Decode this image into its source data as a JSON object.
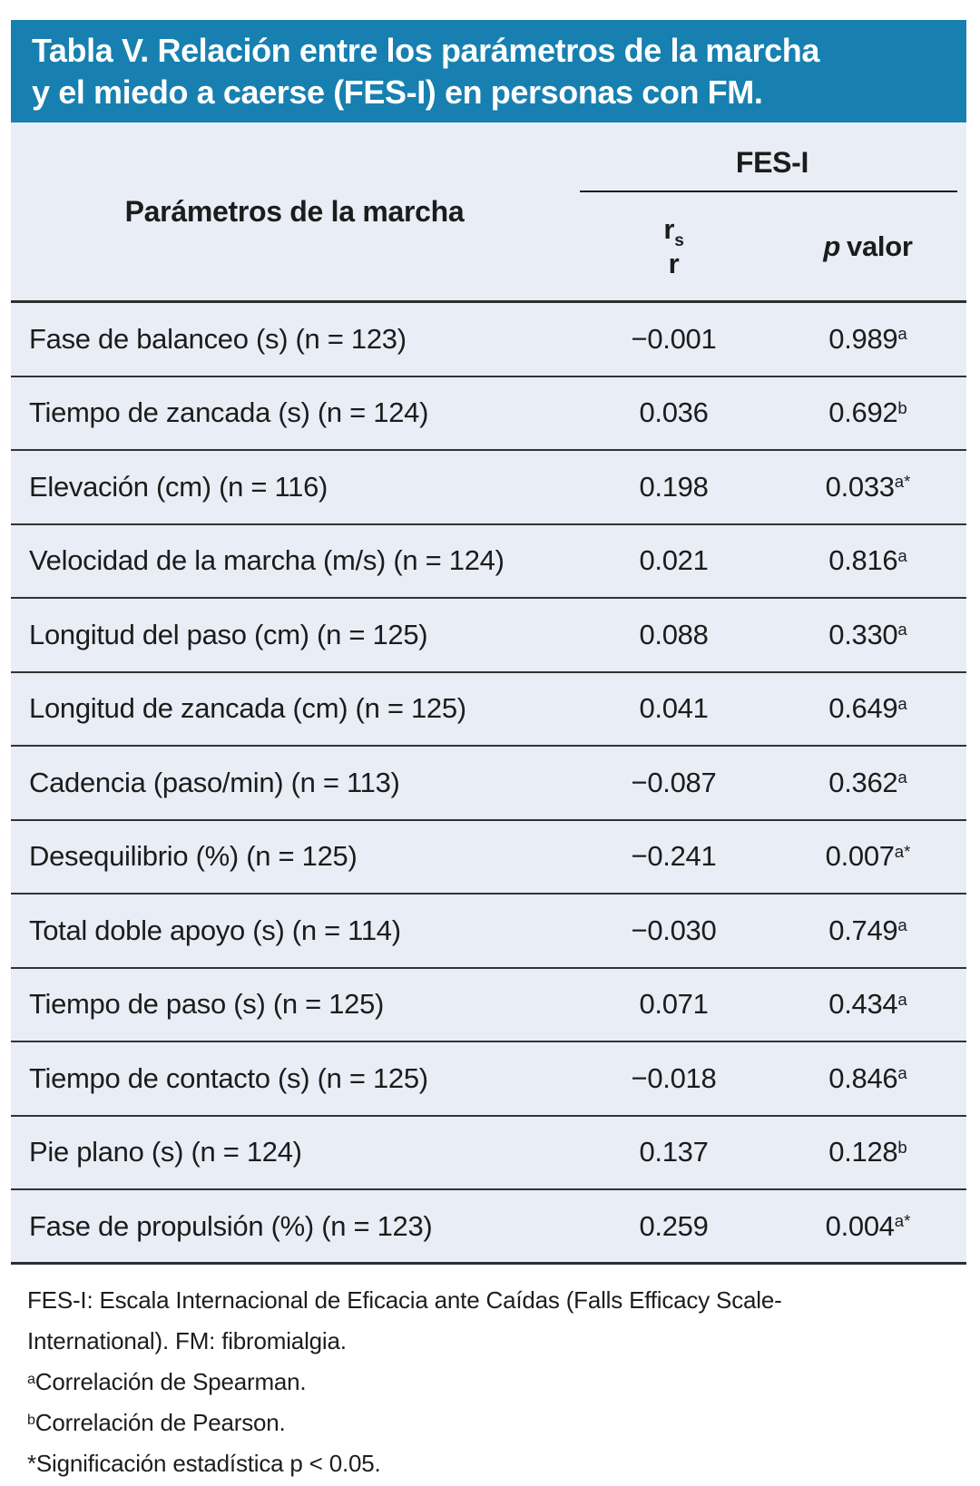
{
  "title": {
    "line1": "Tabla V. Relación entre los parámetros de la marcha",
    "line2": "y el miedo a caerse (FES-I) en personas con FM."
  },
  "table": {
    "param_header": "Parámetros de la marcha",
    "group_header": "FES-I",
    "col_r": {
      "symbol": "r",
      "subscript": "s",
      "second_symbol": "r"
    },
    "col_p": {
      "italic": "p",
      "label": "valor"
    },
    "rows": [
      {
        "param": "Fase de balanceo (s) (n = 123)",
        "r": "−0.001",
        "p": "0.989",
        "p_sup": "a"
      },
      {
        "param": "Tiempo de zancada (s) (n = 124)",
        "r": "0.036",
        "p": "0.692",
        "p_sup": "b"
      },
      {
        "param": "Elevación (cm) (n = 116)",
        "r": "0.198",
        "p": "0.033",
        "p_sup": "a*"
      },
      {
        "param": "Velocidad de la marcha (m/s) (n = 124)",
        "r": "0.021",
        "p": "0.816",
        "p_sup": "a"
      },
      {
        "param": "Longitud del paso (cm) (n = 125)",
        "r": "0.088",
        "p": "0.330",
        "p_sup": "a"
      },
      {
        "param": "Longitud de zancada (cm) (n = 125)",
        "r": "0.041",
        "p": "0.649",
        "p_sup": "a"
      },
      {
        "param": "Cadencia (paso/min) (n = 113)",
        "r": "−0.087",
        "p": "0.362",
        "p_sup": "a"
      },
      {
        "param": "Desequilibrio (%) (n = 125)",
        "r": "−0.241",
        "p": "0.007",
        "p_sup": "a*"
      },
      {
        "param": "Total doble apoyo (s) (n = 114)",
        "r": "−0.030",
        "p": "0.749",
        "p_sup": "a"
      },
      {
        "param": "Tiempo de paso (s) (n = 125)",
        "r": "0.071",
        "p": "0.434",
        "p_sup": "a"
      },
      {
        "param": "Tiempo de contacto (s) (n = 125)",
        "r": "−0.018",
        "p": "0.846",
        "p_sup": "a"
      },
      {
        "param": "Pie plano (s) (n = 124)",
        "r": "0.137",
        "p": "0.128",
        "p_sup": "b"
      },
      {
        "param": "Fase de propulsión (%) (n = 123)",
        "r": "0.259",
        "p": "0.004",
        "p_sup": "a*"
      }
    ]
  },
  "footnotes": {
    "lines": [
      {
        "sup": "",
        "text": "FES-I: Escala Internacional de Eficacia ante Caídas (Falls Efficacy Scale-"
      },
      {
        "sup": "",
        "text": "International). FM: fibromialgia."
      },
      {
        "sup": "a",
        "text": "Correlación de Spearman."
      },
      {
        "sup": "b",
        "text": "Correlación de Pearson."
      },
      {
        "sup": "",
        "text": "*Significación estadística p < 0.05."
      }
    ]
  },
  "colors": {
    "title_bar_bg": "#1780b0",
    "title_text": "#ffffff",
    "table_bg": "#e9edf5",
    "rule_line": "#2e2e2e",
    "text": "#1c1c1c"
  }
}
